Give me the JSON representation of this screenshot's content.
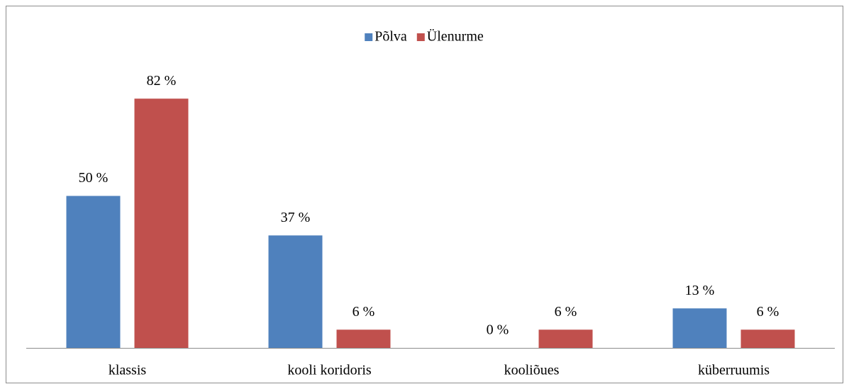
{
  "chart_data": {
    "type": "bar",
    "categories": [
      "klassis",
      "kooli koridoris",
      "kooliõues",
      "küberruumis"
    ],
    "series": [
      {
        "name": "Põlva",
        "color": "#4f81bd",
        "values": [
          50,
          37,
          0,
          13
        ],
        "value_labels": [
          "50 %",
          "37 %",
          "0 %",
          "13 %"
        ]
      },
      {
        "name": "Ülenurme",
        "color": "#c0504d",
        "values": [
          82,
          6,
          6,
          6
        ],
        "value_labels": [
          "82 %",
          "6 %",
          "6 %",
          "6 %"
        ]
      }
    ],
    "legend": "top"
  }
}
